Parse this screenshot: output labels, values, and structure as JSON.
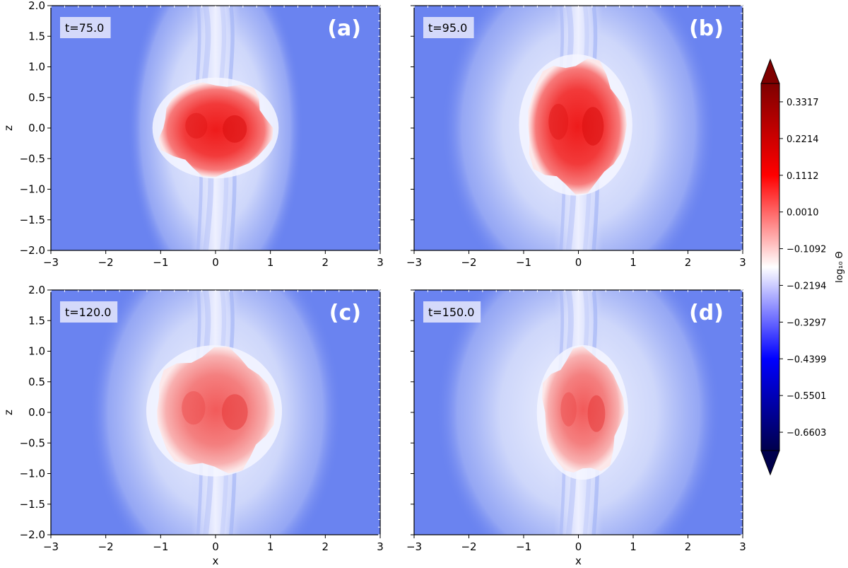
{
  "chart_data": [
    {
      "type": "heatmap",
      "panel_label": "(a)",
      "time_label": "t=75.0",
      "xlabel": "",
      "ylabel": "z",
      "xlim": [
        -3,
        3
      ],
      "ylim": [
        -2,
        2
      ],
      "xticks": [
        "−3",
        "−2",
        "−1",
        "0",
        "1",
        "2",
        "3"
      ],
      "yticks": [
        "−2.0",
        "−1.5",
        "−1.0",
        "−0.5",
        "0.0",
        "0.5",
        "1.0",
        "1.5",
        "2.0"
      ],
      "hot_region": {
        "x_extent": [
          -1.0,
          1.0
        ],
        "z_extent": [
          -0.75,
          0.75
        ],
        "peak_log10_theta": 0.25
      },
      "cocoon_half_width": 1.6,
      "jet_z_extent": [
        -2,
        2
      ]
    },
    {
      "type": "heatmap",
      "panel_label": "(b)",
      "time_label": "t=95.0",
      "xlabel": "",
      "ylabel": "",
      "xlim": [
        -3,
        3
      ],
      "ylim": [
        -2,
        2
      ],
      "xticks": [
        "−3",
        "−2",
        "−1",
        "0",
        "1",
        "2",
        "3"
      ],
      "hot_region": {
        "x_extent": [
          -0.95,
          0.85
        ],
        "z_extent": [
          -1.0,
          1.1
        ],
        "peak_log10_theta": 0.2
      },
      "cocoon_half_width": 2.5,
      "jet_z_extent": [
        -2,
        2
      ]
    },
    {
      "type": "heatmap",
      "panel_label": "(c)",
      "time_label": "t=120.0",
      "xlabel": "x",
      "ylabel": "z",
      "xlim": [
        -3,
        3
      ],
      "ylim": [
        -2,
        2
      ],
      "xticks": [
        "−3",
        "−2",
        "−1",
        "0",
        "1",
        "2",
        "3"
      ],
      "yticks": [
        "−2.0",
        "−1.5",
        "−1.0",
        "−0.5",
        "0.0",
        "0.5",
        "1.0",
        "1.5",
        "2.0"
      ],
      "hot_region": {
        "x_extent": [
          -1.1,
          1.05
        ],
        "z_extent": [
          -0.95,
          1.0
        ],
        "peak_log10_theta": 0.12
      },
      "cocoon_half_width": 2.3,
      "jet_z_extent": [
        -2,
        2
      ]
    },
    {
      "type": "heatmap",
      "panel_label": "(d)",
      "time_label": "t=150.0",
      "xlabel": "x",
      "ylabel": "",
      "xlim": [
        -3,
        3
      ],
      "ylim": [
        -2,
        2
      ],
      "xticks": [
        "−3",
        "−2",
        "−1",
        "0",
        "1",
        "2",
        "3"
      ],
      "hot_region": {
        "x_extent": [
          -0.65,
          0.8
        ],
        "z_extent": [
          -1.0,
          1.0
        ],
        "peak_log10_theta": 0.12
      },
      "cocoon_half_width": 2.6,
      "jet_z_extent": [
        -2,
        2
      ]
    }
  ],
  "colorbar": {
    "label": "log₁₀ Θ",
    "ticks": [
      "0.3317",
      "0.2214",
      "0.1112",
      "0.0010",
      "−0.1092",
      "−0.2194",
      "−0.3297",
      "−0.4399",
      "−0.5501",
      "−0.6603"
    ],
    "tick_values": [
      0.3317,
      0.2214,
      0.1112,
      0.001,
      -0.1092,
      -0.2194,
      -0.3297,
      -0.4399,
      -0.5501,
      -0.6603
    ],
    "range": [
      -0.7154,
      0.3868
    ],
    "extend": "both",
    "colormap": "seismic",
    "colors": [
      "#00004c",
      "#0000ff",
      "#ffffff",
      "#ff0000",
      "#7f0000"
    ]
  }
}
